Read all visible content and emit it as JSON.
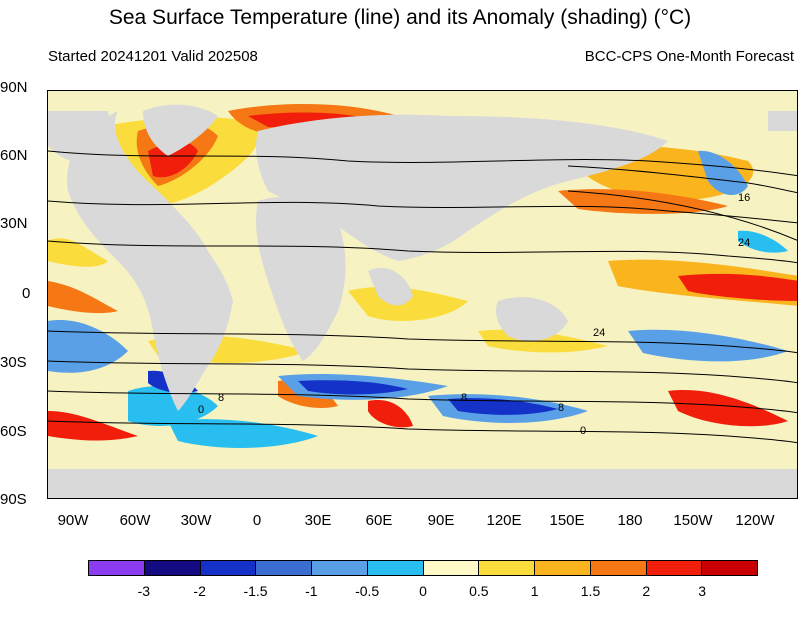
{
  "title": "Sea Surface Temperature (line) and its Anomaly (shading) (°C)",
  "subtitle_left": "Started 20241201  Valid 202508",
  "subtitle_right": "BCC-CPS One-Month Forecast",
  "lat_labels": [
    "90N",
    "60N",
    "30N",
    "0",
    "30S",
    "60S",
    "90S"
  ],
  "lon_labels": [
    "90W",
    "60W",
    "30W",
    "0",
    "30E",
    "60E",
    "90E",
    "120E",
    "150E",
    "180",
    "150W",
    "120W"
  ],
  "contour_labels": [
    "16",
    "24",
    "24",
    "8",
    "8",
    "8",
    "0",
    "0"
  ],
  "colorbar": {
    "labels": [
      "-3",
      "-2",
      "-1.5",
      "-1",
      "-0.5",
      "0",
      "0.5",
      "1",
      "1.5",
      "2",
      "3"
    ],
    "colors": [
      "#8c3cf0",
      "#140a82",
      "#1432c8",
      "#3c6ed2",
      "#5aa0e6",
      "#28bef0",
      "#fffac8",
      "#fadc3c",
      "#fab41e",
      "#f57814",
      "#f01e0a",
      "#c80000"
    ]
  },
  "colors": {
    "land": "#d9d9d9",
    "ocean_base": "#f7f2c2"
  }
}
